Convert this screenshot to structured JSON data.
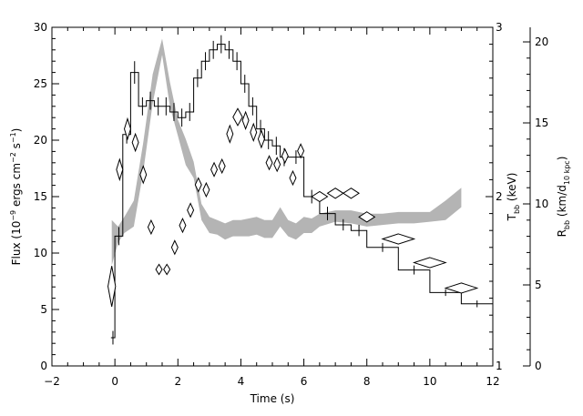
{
  "chart_data": {
    "type": "line",
    "xlabel": "Time (s)",
    "ylabel_html": "Flux (10⁻⁹ ergs cm⁻² s⁻¹)",
    "ylabel_base": "Flux (10",
    "ylabel_exp1": "−9",
    "ylabel_mid": " ergs cm",
    "ylabel_exp2": "−2",
    "ylabel_mid2": " s",
    "ylabel_exp3": "−1",
    "ylabel_end": ")",
    "y2label_main": "T",
    "y2label_sub": "bb",
    "y2label_rest": " (keV)",
    "y3label_main": "R",
    "y3label_sub": "bb",
    "y3label_rest": " (km/d",
    "y3label_sub2": "10 kpc",
    "y3label_end": ")",
    "xlim": [
      -2,
      12
    ],
    "ylim": [
      0,
      30
    ],
    "y2lim": [
      1,
      3
    ],
    "y3lim": [
      0,
      20.9
    ],
    "xticks": [
      -2,
      0,
      2,
      4,
      6,
      8,
      10,
      12
    ],
    "yticks": [
      0,
      5,
      10,
      15,
      20,
      25,
      30
    ],
    "y2ticks": [
      1,
      2,
      3
    ],
    "y3ticks": [
      0,
      5,
      10,
      15,
      20
    ],
    "flux_histogram": {
      "name": "",
      "edges": [
        -0.125,
        0.0,
        0.25,
        0.5,
        0.75,
        1.0,
        1.25,
        1.5,
        1.75,
        2.0,
        2.25,
        2.5,
        2.75,
        3.0,
        3.25,
        3.5,
        3.75,
        4.0,
        4.25,
        4.5,
        4.75,
        5.0,
        5.25,
        5.5,
        6.0,
        6.5,
        7.0,
        7.5,
        8.0,
        9.0,
        10.0,
        11.0,
        12.0
      ],
      "values": [
        2.5,
        11.5,
        20.5,
        26.0,
        23.0,
        23.5,
        23.0,
        23.0,
        22.5,
        22.0,
        22.5,
        25.5,
        27.0,
        28.0,
        28.5,
        28.0,
        27.0,
        25.0,
        23.0,
        21.0,
        20.0,
        19.5,
        18.5,
        18.5,
        15.0,
        13.5,
        12.5,
        12.0,
        10.5,
        8.5,
        6.5,
        5.5
      ],
      "errors": [
        0.6,
        0.8,
        0.8,
        1.0,
        0.8,
        0.8,
        0.8,
        0.8,
        0.8,
        0.8,
        0.8,
        0.8,
        0.8,
        0.8,
        0.8,
        0.8,
        0.8,
        0.8,
        0.8,
        0.8,
        0.8,
        0.8,
        0.8,
        0.6,
        0.6,
        0.6,
        0.5,
        0.5,
        0.4,
        0.4,
        0.3,
        0.3
      ]
    },
    "temperature_diamonds": {
      "name": "",
      "axis": "y2",
      "points": [
        {
          "x": -0.1,
          "y": 1.47,
          "dx": 0.12,
          "dy": 0.12
        },
        {
          "x": 0.15,
          "y": 2.16,
          "dx": 0.1,
          "dy": 0.06
        },
        {
          "x": 0.4,
          "y": 2.4,
          "dx": 0.1,
          "dy": 0.06
        },
        {
          "x": 0.65,
          "y": 2.32,
          "dx": 0.1,
          "dy": 0.05
        },
        {
          "x": 0.9,
          "y": 2.13,
          "dx": 0.1,
          "dy": 0.05
        },
        {
          "x": 1.15,
          "y": 1.82,
          "dx": 0.1,
          "dy": 0.04
        },
        {
          "x": 1.4,
          "y": 1.57,
          "dx": 0.1,
          "dy": 0.03
        },
        {
          "x": 1.65,
          "y": 1.57,
          "dx": 0.1,
          "dy": 0.03
        },
        {
          "x": 1.9,
          "y": 1.7,
          "dx": 0.1,
          "dy": 0.04
        },
        {
          "x": 2.15,
          "y": 1.83,
          "dx": 0.1,
          "dy": 0.04
        },
        {
          "x": 2.4,
          "y": 1.92,
          "dx": 0.1,
          "dy": 0.04
        },
        {
          "x": 2.65,
          "y": 2.07,
          "dx": 0.1,
          "dy": 0.04
        },
        {
          "x": 2.9,
          "y": 2.04,
          "dx": 0.1,
          "dy": 0.04
        },
        {
          "x": 3.15,
          "y": 2.16,
          "dx": 0.1,
          "dy": 0.04
        },
        {
          "x": 3.4,
          "y": 2.18,
          "dx": 0.1,
          "dy": 0.04
        },
        {
          "x": 3.65,
          "y": 2.37,
          "dx": 0.1,
          "dy": 0.05
        },
        {
          "x": 3.9,
          "y": 2.47,
          "dx": 0.15,
          "dy": 0.05
        },
        {
          "x": 4.15,
          "y": 2.45,
          "dx": 0.1,
          "dy": 0.05
        },
        {
          "x": 4.4,
          "y": 2.38,
          "dx": 0.1,
          "dy": 0.05
        },
        {
          "x": 4.65,
          "y": 2.34,
          "dx": 0.1,
          "dy": 0.05
        },
        {
          "x": 4.9,
          "y": 2.2,
          "dx": 0.1,
          "dy": 0.04
        },
        {
          "x": 5.15,
          "y": 2.19,
          "dx": 0.1,
          "dy": 0.04
        },
        {
          "x": 5.4,
          "y": 2.24,
          "dx": 0.1,
          "dy": 0.04
        },
        {
          "x": 5.65,
          "y": 2.11,
          "dx": 0.1,
          "dy": 0.04
        },
        {
          "x": 5.9,
          "y": 2.27,
          "dx": 0.1,
          "dy": 0.04
        },
        {
          "x": 6.5,
          "y": 2.0,
          "dx": 0.25,
          "dy": 0.03
        },
        {
          "x": 7.0,
          "y": 2.02,
          "dx": 0.25,
          "dy": 0.03
        },
        {
          "x": 7.5,
          "y": 2.02,
          "dx": 0.25,
          "dy": 0.03
        },
        {
          "x": 8.0,
          "y": 1.88,
          "dx": 0.25,
          "dy": 0.03
        },
        {
          "x": 9.0,
          "y": 1.75,
          "dx": 0.5,
          "dy": 0.03
        },
        {
          "x": 10.0,
          "y": 1.61,
          "dx": 0.5,
          "dy": 0.03
        },
        {
          "x": 11.0,
          "y": 1.46,
          "dx": 0.5,
          "dy": 0.03
        }
      ]
    },
    "radius_band": {
      "name": "",
      "axis": "y3",
      "x": [
        -0.1,
        0.1,
        0.3,
        0.6,
        0.9,
        1.2,
        1.5,
        1.75,
        2.0,
        2.25,
        2.5,
        2.75,
        3.0,
        3.25,
        3.5,
        3.75,
        4.0,
        4.25,
        4.5,
        4.75,
        5.0,
        5.25,
        5.5,
        5.75,
        6.0,
        6.25,
        6.5,
        7.0,
        7.5,
        8.0,
        8.5,
        9.0,
        9.5,
        10.0,
        10.5,
        11.0
      ],
      "lower": [
        6.2,
        7.6,
        8.2,
        8.6,
        12.0,
        16.2,
        19.2,
        16.0,
        14.2,
        12.4,
        11.6,
        9.0,
        8.2,
        8.1,
        7.8,
        8.0,
        8.0,
        8.0,
        8.1,
        7.9,
        7.9,
        8.6,
        8.0,
        7.8,
        8.2,
        8.2,
        8.6,
        8.9,
        8.8,
        8.6,
        8.7,
        8.8,
        8.8,
        8.9,
        9.0,
        9.8
      ],
      "upper": [
        9.0,
        8.6,
        9.2,
        10.2,
        13.8,
        18.0,
        20.2,
        17.5,
        15.2,
        14.0,
        12.6,
        10.0,
        9.2,
        9.0,
        8.8,
        9.0,
        9.0,
        9.1,
        9.2,
        9.0,
        9.0,
        9.8,
        9.0,
        8.8,
        9.2,
        9.1,
        9.4,
        9.6,
        9.6,
        9.4,
        9.4,
        9.5,
        9.5,
        9.5,
        10.2,
        11.0
      ]
    },
    "colors": {
      "band": "#b4b4b4",
      "line": "#000000",
      "background": "#ffffff"
    }
  }
}
